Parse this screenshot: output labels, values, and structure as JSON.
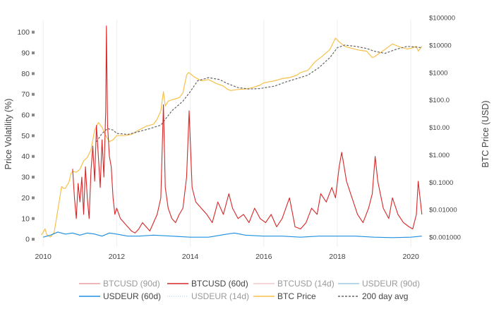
{
  "chart_data": {
    "type": "line",
    "y_left": {
      "label": "Price Volatility (%)",
      "ticks": [
        "0",
        "10",
        "20",
        "30",
        "40",
        "50",
        "60",
        "70",
        "80",
        "90",
        "100"
      ],
      "range": [
        -2,
        106
      ]
    },
    "y_right": {
      "label": "BTC Price (USD)",
      "scale": "log",
      "ticks": [
        "$0.001000",
        "$0.01000",
        "$0.1000",
        "$1.000",
        "$10.00",
        "$100.0",
        "$1000",
        "$10000",
        "$100000"
      ],
      "tick_values": [
        0.001,
        0.01,
        0.1,
        1,
        10,
        100,
        1000,
        10000,
        100000
      ]
    },
    "x_axis": {
      "ticks": [
        "2010",
        "2012",
        "2014",
        "2016",
        "2018",
        "2020"
      ],
      "range": [
        2009.9,
        2020.4
      ],
      "grid": true
    },
    "legend": {
      "placement": "bottom",
      "items": [
        {
          "label": "BTCUSD (90d)",
          "color": "#e8a0a0",
          "style": "solid",
          "dim": true
        },
        {
          "label": "BTCUSD (60d)",
          "color": "#d62728",
          "style": "solid",
          "dim": false
        },
        {
          "label": "BTCUSD (14d)",
          "color": "#f3c8c8",
          "style": "solid",
          "dim": true
        },
        {
          "label": "USDEUR (90d)",
          "color": "#9ecae1",
          "style": "solid",
          "dim": true
        },
        {
          "label": "USDEUR (60d)",
          "color": "#1f8fe0",
          "style": "solid",
          "dim": false
        },
        {
          "label": "USDEUR (14d)",
          "color": "#c6dbef",
          "style": "dotted",
          "dim": true
        },
        {
          "label": "BTC Price",
          "color": "#f7c04a",
          "style": "solid",
          "dim": false
        },
        {
          "label": "200 day avg",
          "color": "#666666",
          "style": "dashed",
          "dim": false
        }
      ]
    },
    "series": [
      {
        "name": "BTCUSD (60d)",
        "color": "#d62728",
        "axis": "left",
        "x": [
          2010.0,
          2010.1,
          2010.2,
          2010.3,
          2010.4,
          2010.5,
          2010.55,
          2010.6,
          2010.65,
          2010.7,
          2010.75,
          2010.8,
          2010.85,
          2010.9,
          2010.95,
          2011.0,
          2011.05,
          2011.1,
          2011.15,
          2011.2,
          2011.25,
          2011.3,
          2011.35,
          2011.4,
          2011.45,
          2011.5,
          2011.55,
          2011.6,
          2011.65,
          2011.7,
          2011.72,
          2011.75,
          2011.8,
          2011.85,
          2011.9,
          2011.95,
          2012.0,
          2012.1,
          2012.2,
          2012.3,
          2012.4,
          2012.5,
          2012.6,
          2012.7,
          2012.8,
          2012.9,
          2013.0,
          2013.1,
          2013.2,
          2013.27,
          2013.32,
          2013.4,
          2013.5,
          2013.6,
          2013.7,
          2013.8,
          2013.9,
          2013.97,
          2014.05,
          2014.15,
          2014.3,
          2014.45,
          2014.6,
          2014.75,
          2014.9,
          2015.05,
          2015.15,
          2015.3,
          2015.45,
          2015.6,
          2015.75,
          2015.9,
          2016.05,
          2016.2,
          2016.35,
          2016.5,
          2016.6,
          2016.7,
          2016.85,
          2017.0,
          2017.15,
          2017.3,
          2017.45,
          2017.55,
          2017.7,
          2017.85,
          2017.95,
          2018.05,
          2018.12,
          2018.25,
          2018.4,
          2018.55,
          2018.7,
          2018.85,
          2018.95,
          2019.03,
          2019.1,
          2019.25,
          2019.4,
          2019.5,
          2019.65,
          2019.8,
          2019.95,
          2020.05,
          2020.15,
          2020.2,
          2020.25,
          2020.3
        ],
        "y": [
          null,
          null,
          null,
          null,
          null,
          null,
          null,
          null,
          null,
          null,
          null,
          34,
          20,
          10,
          27,
          18,
          30,
          12,
          35,
          20,
          10,
          33,
          45,
          28,
          55,
          40,
          25,
          48,
          30,
          62,
          103,
          55,
          40,
          35,
          20,
          12,
          15,
          10,
          8,
          6,
          4,
          3,
          5,
          8,
          6,
          4,
          8,
          12,
          20,
          65,
          25,
          15,
          10,
          8,
          12,
          15,
          30,
          62,
          25,
          18,
          15,
          12,
          8,
          18,
          12,
          22,
          15,
          10,
          12,
          8,
          15,
          10,
          8,
          12,
          6,
          10,
          15,
          20,
          6,
          5,
          8,
          15,
          12,
          22,
          18,
          25,
          20,
          35,
          42,
          28,
          20,
          12,
          8,
          15,
          22,
          40,
          28,
          15,
          10,
          20,
          12,
          8,
          6,
          5,
          12,
          28,
          20,
          12
        ]
      },
      {
        "name": "USDEUR (60d)",
        "color": "#1f8fe0",
        "axis": "left",
        "x": [
          2010.0,
          2010.2,
          2010.4,
          2010.6,
          2010.8,
          2011.0,
          2011.2,
          2011.4,
          2011.6,
          2011.8,
          2012.0,
          2012.3,
          2012.6,
          2013.0,
          2013.5,
          2014.0,
          2014.5,
          2015.0,
          2015.2,
          2015.5,
          2016.0,
          2016.5,
          2017.0,
          2017.5,
          2018.0,
          2018.5,
          2019.0,
          2019.5,
          2020.0,
          2020.3
        ],
        "y": [
          1,
          2,
          3.5,
          2.5,
          3,
          2,
          3,
          2.5,
          1.5,
          3,
          2.5,
          1.5,
          1.5,
          2,
          1.5,
          1,
          1,
          2.5,
          3,
          2,
          1.5,
          1.5,
          1,
          1.5,
          1.5,
          1.5,
          1,
          0.8,
          1,
          1.5
        ]
      },
      {
        "name": "BTC Price",
        "color": "#f7c04a",
        "axis": "right",
        "x": [
          2009.95,
          2010.0,
          2010.05,
          2010.1,
          2010.2,
          2010.3,
          2010.4,
          2010.5,
          2010.55,
          2010.6,
          2010.7,
          2010.75,
          2010.8,
          2010.9,
          2011.0,
          2011.1,
          2011.2,
          2011.3,
          2011.4,
          2011.5,
          2011.6,
          2011.7,
          2011.8,
          2011.9,
          2012.0,
          2012.2,
          2012.4,
          2012.6,
          2012.8,
          2013.0,
          2013.1,
          2013.2,
          2013.27,
          2013.32,
          2013.4,
          2013.5,
          2013.6,
          2013.7,
          2013.8,
          2013.9,
          2013.95,
          2014.0,
          2014.1,
          2014.3,
          2014.5,
          2014.7,
          2014.9,
          2015.0,
          2015.1,
          2015.3,
          2015.5,
          2015.7,
          2015.9,
          2016.0,
          2016.3,
          2016.5,
          2016.7,
          2016.9,
          2017.0,
          2017.2,
          2017.4,
          2017.6,
          2017.8,
          2017.95,
          2018.05,
          2018.2,
          2018.4,
          2018.6,
          2018.8,
          2018.95,
          2019.0,
          2019.3,
          2019.5,
          2019.7,
          2019.9,
          2020.0,
          2020.15,
          2020.2,
          2020.3
        ],
        "y": [
          0.0012,
          0.0015,
          0.002,
          0.0012,
          0.001,
          0.0015,
          0.01,
          0.07,
          0.06,
          0.06,
          0.1,
          0.2,
          0.25,
          0.23,
          0.3,
          0.6,
          0.8,
          1.5,
          8,
          15,
          10,
          5,
          3,
          3.5,
          5,
          5,
          5.5,
          8,
          11,
          13,
          20,
          40,
          200,
          60,
          90,
          100,
          110,
          120,
          180,
          800,
          1000,
          900,
          700,
          500,
          550,
          400,
          320,
          250,
          220,
          240,
          250,
          280,
          350,
          420,
          500,
          600,
          650,
          800,
          1000,
          1200,
          2500,
          4000,
          7000,
          18000,
          13000,
          9000,
          7500,
          6500,
          6000,
          3500,
          3700,
          7000,
          11000,
          8500,
          7200,
          7500,
          9000,
          6000,
          9000
        ]
      },
      {
        "name": "200 day avg",
        "color": "#666666",
        "axis": "right",
        "x": [
          2011.45,
          2011.6,
          2011.75,
          2011.9,
          2012.0,
          2012.3,
          2012.6,
          2012.9,
          2013.2,
          2013.5,
          2013.8,
          2014.0,
          2014.2,
          2014.5,
          2014.8,
          2015.0,
          2015.3,
          2015.6,
          2015.9,
          2016.3,
          2016.6,
          2016.9,
          2017.2,
          2017.5,
          2017.8,
          2018.0,
          2018.2,
          2018.5,
          2018.8,
          2019.0,
          2019.3,
          2019.6,
          2019.9,
          2020.1,
          2020.3
        ],
        "y": [
          3,
          6,
          9,
          8,
          6,
          5.5,
          7,
          9,
          12,
          40,
          90,
          200,
          500,
          650,
          550,
          400,
          280,
          250,
          260,
          320,
          450,
          600,
          800,
          1500,
          3500,
          8000,
          10000,
          9000,
          7500,
          6000,
          5000,
          7000,
          9000,
          8500,
          8000
        ]
      }
    ]
  }
}
